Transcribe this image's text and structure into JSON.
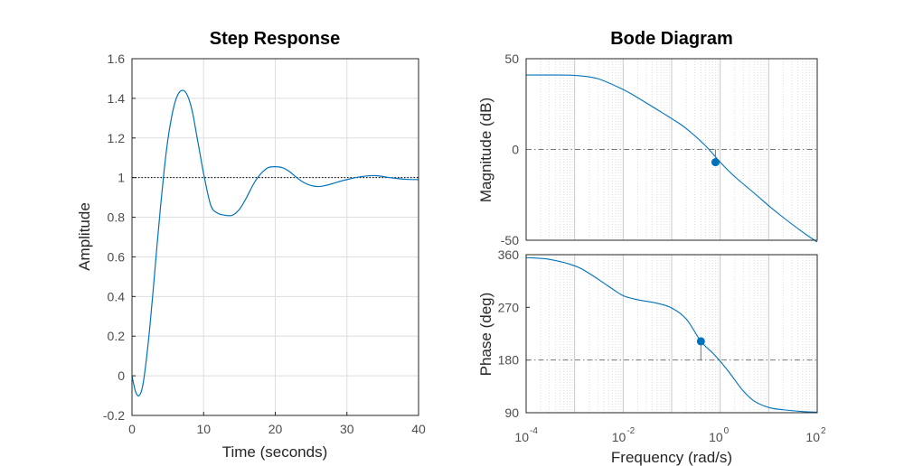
{
  "colors": {
    "line": "#0072bd",
    "axis": "#262626",
    "grid": "#dedede",
    "ref": "#777777",
    "background": "#ffffff"
  },
  "chart_data": [
    {
      "type": "line",
      "title": "Step Response",
      "xlabel": "Time (seconds)",
      "ylabel": "Amplitude",
      "xlim": [
        0,
        40
      ],
      "ylim": [
        -0.2,
        1.6
      ],
      "xticks": [
        "0",
        "10",
        "20",
        "30",
        "40"
      ],
      "yticks": [
        "-0.2",
        "0",
        "0.2",
        "0.4",
        "0.6",
        "0.8",
        "1",
        "1.2",
        "1.4",
        "1.6"
      ],
      "grid": true,
      "reference_line": {
        "y": 1,
        "style": "dotted"
      },
      "series": [
        {
          "x": [
            0,
            0.5,
            1,
            1.5,
            2,
            2.5,
            3,
            3.5,
            4,
            4.5,
            5,
            5.5,
            6,
            6.5,
            7,
            7.5,
            8,
            8.5,
            9,
            9.5,
            10,
            11,
            12,
            13,
            14,
            15,
            16,
            17,
            18,
            19,
            20,
            21,
            22,
            23,
            24,
            25,
            26,
            27,
            28,
            30,
            32,
            34,
            36,
            38,
            40
          ],
          "y": [
            0,
            -0.08,
            -0.1,
            -0.05,
            0.08,
            0.25,
            0.45,
            0.66,
            0.86,
            1.04,
            1.19,
            1.3,
            1.38,
            1.425,
            1.44,
            1.43,
            1.39,
            1.32,
            1.22,
            1.12,
            1.02,
            0.86,
            0.82,
            0.81,
            0.81,
            0.84,
            0.9,
            0.97,
            1.02,
            1.05,
            1.055,
            1.05,
            1.03,
            1.0,
            0.975,
            0.96,
            0.955,
            0.96,
            0.97,
            0.99,
            1.005,
            1.01,
            1.0,
            0.992,
            0.99
          ]
        }
      ]
    },
    {
      "type": "line",
      "title": "Bode Diagram",
      "xlabel": "Frequency  (rad/s)",
      "xscale": "log",
      "xlim": [
        0.0001,
        100
      ],
      "xticks": [
        {
          "base": "10",
          "exp": "-4"
        },
        {
          "base": "10",
          "exp": "-2"
        },
        {
          "base": "10",
          "exp": "0"
        },
        {
          "base": "10",
          "exp": "2"
        }
      ],
      "grid": true,
      "panels": [
        {
          "ylabel": "Magnitude (dB)",
          "ylim": [
            -50,
            50
          ],
          "yticks": [
            "-50",
            "0",
            "50"
          ],
          "reference_line": {
            "y": 0,
            "style": "dashdot"
          },
          "marker": {
            "x": 0.8,
            "y": -7
          },
          "series": [
            {
              "x": [
                0.0001,
                0.0003,
                0.001,
                0.003,
                0.01,
                0.02,
                0.05,
                0.1,
                0.2,
                0.5,
                1,
                2,
                5,
                10,
                20,
                50,
                100
              ],
              "y": [
                41,
                41,
                40.8,
                39,
                33,
                28.5,
                22,
                17,
                11.5,
                2,
                -7,
                -15,
                -24,
                -31,
                -37.5,
                -45.5,
                -51
              ]
            }
          ]
        },
        {
          "ylabel": "Phase (deg)",
          "ylim": [
            90,
            360
          ],
          "yticks": [
            "90",
            "180",
            "270",
            "360"
          ],
          "reference_line": {
            "y": 180,
            "style": "dashdot"
          },
          "marker": {
            "x": 0.4,
            "y": 212
          },
          "series": [
            {
              "x": [
                0.0001,
                0.0003,
                0.001,
                0.002,
                0.005,
                0.01,
                0.02,
                0.05,
                0.1,
                0.2,
                0.4,
                0.7,
                1,
                1.5,
                2,
                3,
                5,
                10,
                20,
                50,
                100
              ],
              "y": [
                355,
                352,
                341,
                328,
                306,
                290,
                283,
                277,
                269,
                250,
                212,
                192,
                178,
                160,
                146,
                127,
                110,
                99,
                95,
                92,
                91
              ]
            }
          ]
        }
      ]
    }
  ]
}
